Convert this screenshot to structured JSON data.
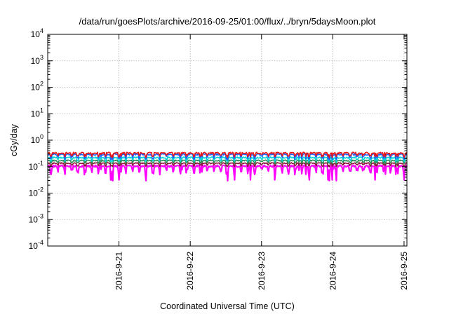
{
  "chart_data": {
    "type": "line",
    "title": "/data/run/goesPlots/archive/2016-09-25/01:00/flux/../bryn/5daysMoon.plot",
    "xlabel": "Coordinated Universal Time (UTC)",
    "ylabel": "cGy/day",
    "yscale": "log",
    "ylim": [
      0.0001,
      10000
    ],
    "xlim": [
      0,
      5.04
    ],
    "grid": true,
    "legend": "none",
    "y_ticks": [
      {
        "exp": "-4",
        "value": 0.0001
      },
      {
        "exp": "-3",
        "value": 0.001
      },
      {
        "exp": "-2",
        "value": 0.01
      },
      {
        "exp": "-1",
        "value": 0.1
      },
      {
        "exp": "0",
        "value": 1
      },
      {
        "exp": "1",
        "value": 10
      },
      {
        "exp": "2",
        "value": 100
      },
      {
        "exp": "3",
        "value": 1000
      },
      {
        "exp": "4",
        "value": 10000
      }
    ],
    "y_tick_base": "10",
    "x_ticks": [
      {
        "label": "2016-9-21",
        "value": 1
      },
      {
        "label": "2016-9-22",
        "value": 2
      },
      {
        "label": "2016-9-23",
        "value": 3
      },
      {
        "label": "2016-9-24",
        "value": 4
      },
      {
        "label": "2016-9-25",
        "value": 5
      }
    ],
    "series": [
      {
        "color": "#ff00ff",
        "base": 0.105,
        "dip_depth": 0.55,
        "noise": 0.08
      },
      {
        "color": "#8b1a3a",
        "base": 0.135,
        "dip_depth": 0.25,
        "noise": 0.05
      },
      {
        "color": "#2e8b57",
        "base": 0.17,
        "dip_depth": 0.25,
        "noise": 0.05
      },
      {
        "color": "#00d5d5",
        "base": 0.22,
        "dip_depth": 0.3,
        "noise": 0.06
      },
      {
        "color": "#1e60ff",
        "base": 0.29,
        "dip_depth": 0.35,
        "noise": 0.07
      },
      {
        "color": "#e81818",
        "base": 0.33,
        "dip_depth": 0.3,
        "noise": 0.06
      }
    ]
  }
}
